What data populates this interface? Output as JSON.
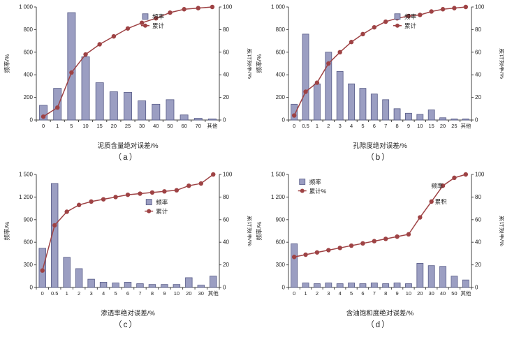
{
  "colors": {
    "bar_fill": "#9b9ec2",
    "bar_stroke": "#565a86",
    "line": "#9e4244",
    "axis": "#444444",
    "text": "#222222"
  },
  "chart_data": [
    {
      "type": "bar+line",
      "caption": "（a）",
      "xlabel": "泥质含量绝对误差/%",
      "ylabel": "频率/%",
      "ylabel_right": "累计频率/%",
      "legend": [
        {
          "type": "bar",
          "label": "频率"
        },
        {
          "type": "line",
          "label": "累计"
        }
      ],
      "legend_pos": {
        "x": 0.58,
        "y": 0.06
      },
      "categories": [
        "0",
        "1",
        "5",
        "10",
        "15",
        "20",
        "25",
        "30",
        "40",
        "50",
        "60",
        "70",
        "其他"
      ],
      "series": [
        {
          "name": "频率",
          "type": "bar",
          "axis": "left",
          "values": [
            130,
            280,
            950,
            560,
            330,
            250,
            245,
            170,
            140,
            180,
            45,
            15,
            10
          ]
        },
        {
          "name": "累计",
          "type": "line",
          "axis": "right",
          "values": [
            3,
            11,
            42,
            58,
            67,
            74,
            81,
            86,
            90,
            95,
            98,
            99,
            100
          ]
        }
      ],
      "y_left": {
        "max": 1000,
        "ticks": [
          0,
          200,
          400,
          600,
          800,
          1000
        ],
        "tick_labels": [
          "0",
          "200",
          "400",
          "600",
          "800",
          "1 000"
        ]
      },
      "y_right": {
        "max": 100,
        "ticks": [
          0,
          20,
          40,
          60,
          80,
          100
        ],
        "tick_labels": [
          "0",
          "20",
          "40",
          "60",
          "80",
          "100"
        ]
      }
    },
    {
      "type": "bar+line",
      "caption": "（b）",
      "xlabel": "孔隙度绝对误差/%",
      "ylabel": "频率/%",
      "ylabel_right": "累计频率/%",
      "legend": [
        {
          "type": "bar",
          "label": "频率"
        },
        {
          "type": "line",
          "label": "累计"
        }
      ],
      "legend_pos": {
        "x": 0.58,
        "y": 0.06
      },
      "categories": [
        "0",
        "0.5",
        "1",
        "2",
        "3",
        "4",
        "5",
        "6",
        "7",
        "8",
        "9",
        "10",
        "15",
        "20",
        "25",
        "其他"
      ],
      "series": [
        {
          "name": "频率",
          "type": "bar",
          "axis": "left",
          "values": [
            140,
            760,
            320,
            600,
            430,
            320,
            280,
            230,
            180,
            100,
            60,
            50,
            90,
            20,
            10,
            10
          ]
        },
        {
          "name": "累计",
          "type": "line",
          "axis": "right",
          "values": [
            4,
            25,
            33,
            50,
            60,
            69,
            76,
            82,
            87,
            90,
            92,
            93,
            96,
            98,
            99,
            100
          ]
        }
      ],
      "y_left": {
        "max": 1000,
        "ticks": [
          0,
          200,
          400,
          600,
          800,
          1000
        ],
        "tick_labels": [
          "0",
          "200",
          "400",
          "600",
          "800",
          "1 000"
        ]
      },
      "y_right": {
        "max": 100,
        "ticks": [
          0,
          20,
          40,
          60,
          80,
          100
        ],
        "tick_labels": [
          "0",
          "20",
          "40",
          "60",
          "80",
          "100"
        ]
      }
    },
    {
      "type": "bar+line",
      "caption": "（c）",
      "xlabel": "渗透率绝对误差/%",
      "ylabel": "频率/%",
      "ylabel_right": "累计频率/%",
      "legend": [
        {
          "type": "bar",
          "label": "频率"
        },
        {
          "type": "line",
          "label": "累计"
        }
      ],
      "legend_pos": {
        "x": 0.6,
        "y": 0.22
      },
      "categories": [
        "0",
        "0.5",
        "1",
        "2",
        "3",
        "4",
        "5",
        "6",
        "7",
        "8",
        "9",
        "10",
        "20",
        "30",
        "其他"
      ],
      "series": [
        {
          "name": "频率",
          "type": "bar",
          "axis": "left",
          "values": [
            520,
            1380,
            400,
            250,
            110,
            70,
            60,
            70,
            50,
            40,
            40,
            40,
            130,
            30,
            150
          ]
        },
        {
          "name": "累计",
          "type": "line",
          "axis": "right",
          "values": [
            15,
            55,
            67,
            73,
            76,
            78,
            80,
            82,
            83,
            84,
            85,
            86,
            90,
            92,
            100
          ]
        }
      ],
      "y_left": {
        "max": 1500,
        "ticks": [
          0,
          300,
          600,
          900,
          1200,
          1500
        ],
        "tick_labels": [
          "0",
          "300",
          "600",
          "900",
          "1 200",
          "1 500"
        ]
      },
      "y_right": {
        "max": 100,
        "ticks": [
          0,
          20,
          40,
          60,
          80,
          100
        ],
        "tick_labels": [
          "0",
          "20",
          "40",
          "60",
          "80",
          "100"
        ]
      }
    },
    {
      "type": "bar+line",
      "caption": "（d）",
      "xlabel": "含油饱和度绝对误差/%",
      "ylabel": "频率/%",
      "ylabel_right": "累计频率/%",
      "legend": [
        {
          "type": "bar",
          "label": "频率"
        },
        {
          "type": "line",
          "label": "累计%"
        }
      ],
      "legend_pos": {
        "x": 0.06,
        "y": 0.04
      },
      "extra_labels": [
        {
          "text": "频率",
          "x": 0.78,
          "y": 0.12
        },
        {
          "text": "累积",
          "x": 0.8,
          "y": 0.26
        }
      ],
      "categories": [
        "0",
        "1",
        "2",
        "3",
        "4",
        "5",
        "6",
        "7",
        "8",
        "9",
        "10",
        "20",
        "30",
        "40",
        "50",
        "其他"
      ],
      "series": [
        {
          "name": "频率",
          "type": "bar",
          "axis": "left",
          "values": [
            580,
            60,
            50,
            60,
            50,
            60,
            50,
            60,
            50,
            60,
            50,
            320,
            290,
            280,
            150,
            100
          ]
        },
        {
          "name": "累计%",
          "type": "line",
          "axis": "right",
          "values": [
            27,
            29,
            31,
            33,
            35,
            37,
            39,
            41,
            43,
            45,
            47,
            62,
            76,
            90,
            97,
            100
          ]
        }
      ],
      "y_left": {
        "max": 1500,
        "ticks": [
          0,
          300,
          600,
          900,
          1200,
          1500
        ],
        "tick_labels": [
          "0",
          "300",
          "600",
          "900",
          "1 200",
          "1 500"
        ]
      },
      "y_right": {
        "max": 100,
        "ticks": [
          0,
          20,
          40,
          60,
          80,
          100
        ],
        "tick_labels": [
          "0",
          "20",
          "40",
          "60",
          "80",
          "100"
        ]
      }
    }
  ]
}
